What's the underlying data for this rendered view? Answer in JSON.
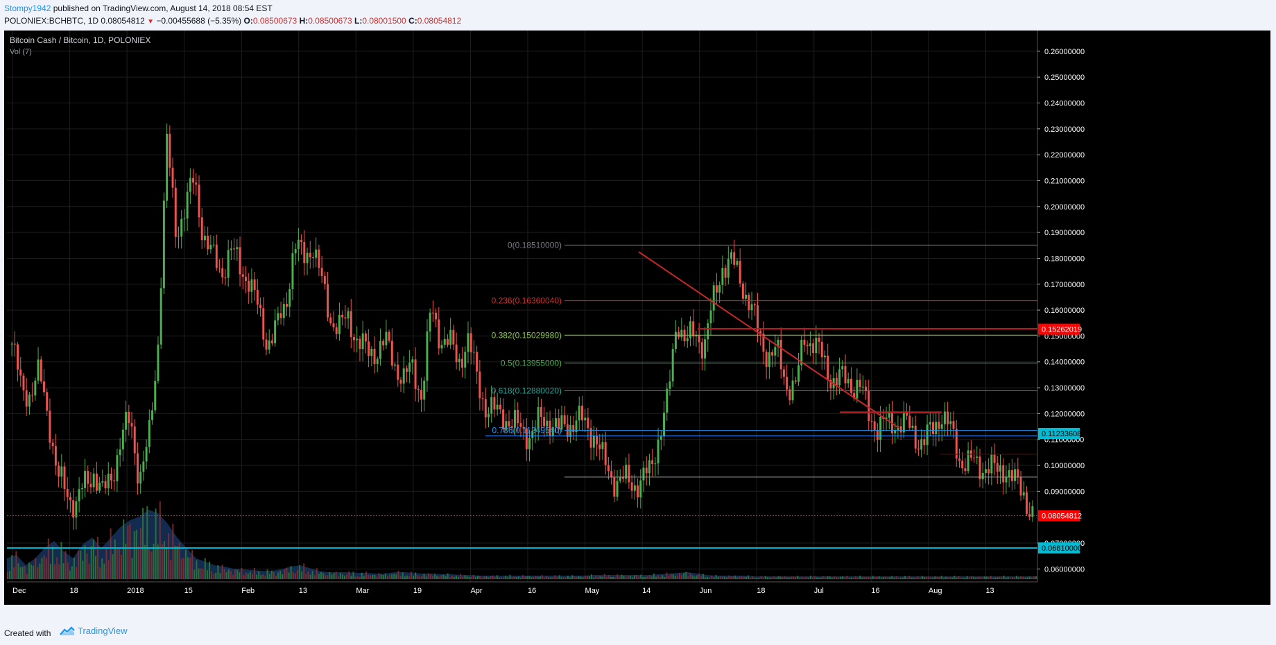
{
  "header": {
    "publisher": "Stompy1942",
    "published_text": "published on TradingView.com, August 14, 2018 08:54 EST",
    "symbol": "POLONIEX:BCHBTC, 1D",
    "last": "0.08054812",
    "change": "−0.00455688 (−5.35%)",
    "o_label": "O:",
    "o_value": "0.08500673",
    "h_label": "H:",
    "h_value": "0.08500673",
    "l_label": "L:",
    "l_value": "0.08001500",
    "c_label": "C:",
    "c_value": "0.08054812"
  },
  "footer": {
    "created": "Created with",
    "brand": "TradingView",
    "logo_icon": "tradingview-logo-icon"
  },
  "chart_data": {
    "type": "candlestick",
    "title": "Bitcoin Cash / Bitcoin, 1D, POLONIEX",
    "subtitle": "Vol (7)",
    "ylim": [
      0.055,
      0.268
    ],
    "y_ticks": [
      "0.26000000",
      "0.25000000",
      "0.24000000",
      "0.23000000",
      "0.22000000",
      "0.21000000",
      "0.20000000",
      "0.19000000",
      "0.18000000",
      "0.17000000",
      "0.16000000",
      "0.15000000",
      "0.14000000",
      "0.13000000",
      "0.12000000",
      "0.11000000",
      "0.10000000",
      "0.09000000",
      "0.07000000",
      "0.06000000"
    ],
    "x_labels": [
      "Dec",
      "18",
      "2018",
      "15",
      "Feb",
      "13",
      "Mar",
      "19",
      "Apr",
      "16",
      "May",
      "14",
      "Jun",
      "18",
      "Jul",
      "16",
      "Aug",
      "13"
    ],
    "price_path": [
      0.147,
      0.13,
      0.128,
      0.135,
      0.12,
      0.095,
      0.09,
      0.085,
      0.092,
      0.098,
      0.088,
      0.097,
      0.11,
      0.118,
      0.095,
      0.108,
      0.145,
      0.225,
      0.19,
      0.2,
      0.21,
      0.19,
      0.18,
      0.175,
      0.183,
      0.177,
      0.172,
      0.16,
      0.148,
      0.152,
      0.162,
      0.185,
      0.18,
      0.186,
      0.17,
      0.157,
      0.153,
      0.157,
      0.148,
      0.143,
      0.145,
      0.147,
      0.14,
      0.133,
      0.138,
      0.127,
      0.16,
      0.15,
      0.147,
      0.14,
      0.149,
      0.134,
      0.123,
      0.12,
      0.12,
      0.115,
      0.114,
      0.112,
      0.117,
      0.118,
      0.113,
      0.116,
      0.118,
      0.115,
      0.112,
      0.1,
      0.095,
      0.094,
      0.093,
      0.094,
      0.097,
      0.112,
      0.125,
      0.158,
      0.147,
      0.151,
      0.147,
      0.163,
      0.178,
      0.178,
      0.172,
      0.162,
      0.15,
      0.143,
      0.143,
      0.132,
      0.13,
      0.15,
      0.148,
      0.14,
      0.134,
      0.133,
      0.132,
      0.131,
      0.12,
      0.115,
      0.116,
      0.117,
      0.116,
      0.112,
      0.109,
      0.113,
      0.121,
      0.113,
      0.103,
      0.101,
      0.1,
      0.1,
      0.097,
      0.1,
      0.093,
      0.09,
      0.0805
    ],
    "volume_path": [
      0.3,
      0.35,
      0.2,
      0.3,
      0.45,
      0.55,
      0.4,
      0.3,
      0.5,
      0.6,
      0.45,
      0.6,
      0.75,
      0.85,
      0.9,
      1.0,
      0.95,
      0.8,
      0.6,
      0.45,
      0.3,
      0.25,
      0.2,
      0.18,
      0.15,
      0.14,
      0.13,
      0.12,
      0.12,
      0.14,
      0.18,
      0.2,
      0.16,
      0.12,
      0.1,
      0.1,
      0.1,
      0.09,
      0.09,
      0.08,
      0.08,
      0.1,
      0.1,
      0.09,
      0.08,
      0.08,
      0.07,
      0.07,
      0.06,
      0.06,
      0.05,
      0.05,
      0.05,
      0.05,
      0.05,
      0.05,
      0.05,
      0.05,
      0.05,
      0.05,
      0.05,
      0.05,
      0.06,
      0.06,
      0.06,
      0.06,
      0.06,
      0.06,
      0.06,
      0.07,
      0.08,
      0.09,
      0.1,
      0.08,
      0.06,
      0.05,
      0.05,
      0.05,
      0.05,
      0.04,
      0.04,
      0.04,
      0.04,
      0.04,
      0.04,
      0.04,
      0.04,
      0.04,
      0.04,
      0.04,
      0.04,
      0.04,
      0.04,
      0.04,
      0.04,
      0.04,
      0.04,
      0.04,
      0.04,
      0.04,
      0.04,
      0.04,
      0.04,
      0.04,
      0.04,
      0.04,
      0.04,
      0.04,
      0.04,
      0.04
    ],
    "fibonacci": [
      {
        "label": "0(0.18510000)",
        "value": 0.1851,
        "color": "#787b86"
      },
      {
        "label": "0.236(0.16360040)",
        "value": 0.1636004,
        "color": "#d32f2f"
      },
      {
        "label": "0.382(0.15029980)",
        "value": 0.1502998,
        "color": "#8bc34a"
      },
      {
        "label": "0.5(0.13955000)",
        "value": 0.13955,
        "color": "#4caf50"
      },
      {
        "label": "0.618(0.12880020)",
        "value": 0.1288002,
        "color": "#26a69a"
      },
      {
        "label": "0.786(0.11349540)",
        "value": 0.1134954,
        "color": "#2196f3"
      }
    ],
    "price_labels": [
      {
        "text": "0.15262019",
        "value": 0.15262019,
        "color": "#ff0000"
      },
      {
        "text": "0.11233608",
        "value": 0.11233608,
        "color": "#00bcd4"
      },
      {
        "text": "0.08054812",
        "value": 0.08054812,
        "color": "#ff0000"
      },
      {
        "text": "0.06810000",
        "value": 0.0681,
        "color": "#00bcd4"
      }
    ],
    "colors": {
      "up": "#4caf50",
      "down": "#ef5350",
      "trend": "#c62828",
      "grid": "#1e1e1e",
      "text": "#d1d4dc",
      "axis": "#ffffff"
    }
  }
}
